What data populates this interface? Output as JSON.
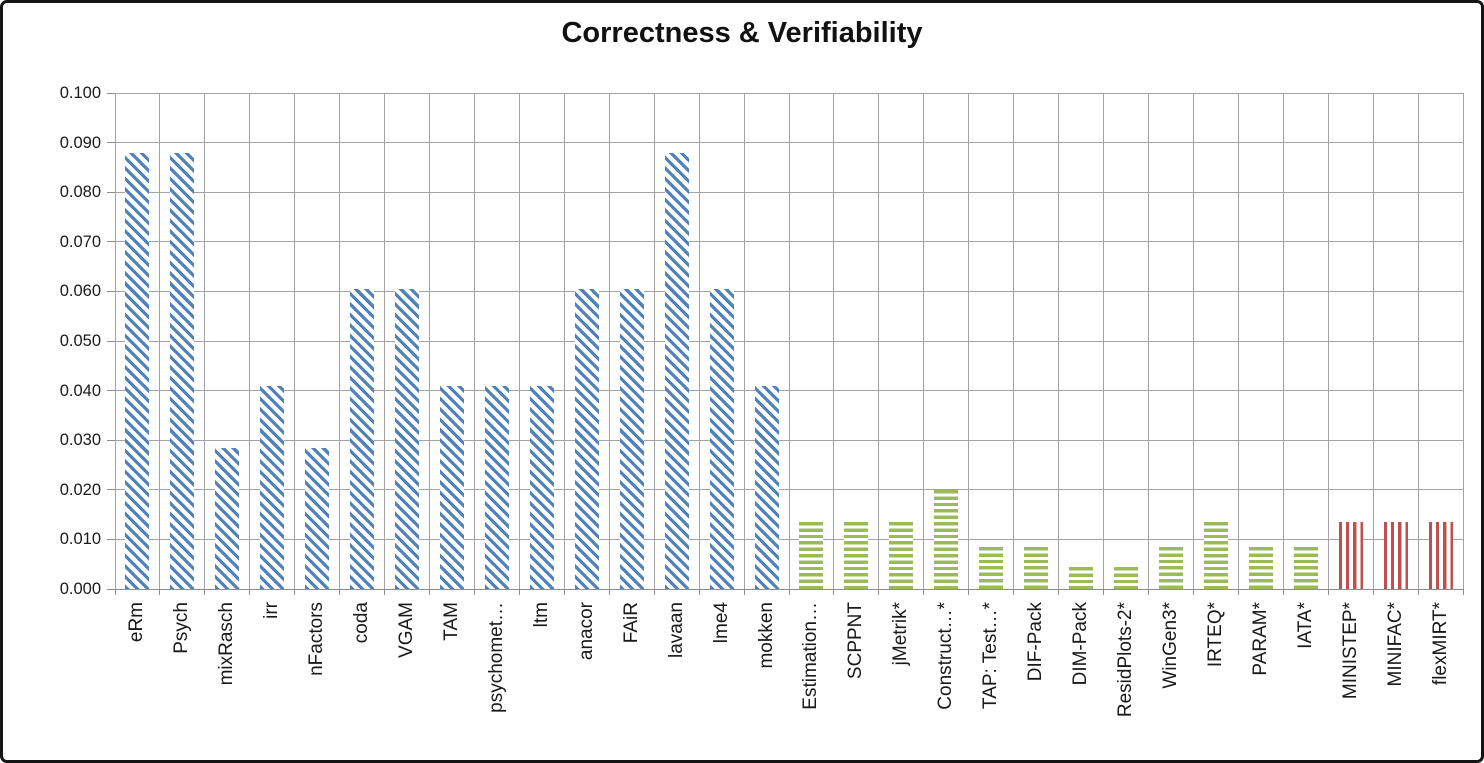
{
  "title": "Correctness & Verifiability",
  "chart_data": {
    "type": "bar",
    "title": "Correctness & Verifiability",
    "xlabel": "",
    "ylabel": "",
    "ylim": [
      0,
      0.1
    ],
    "ytick_step": 0.01,
    "ytick_labels": [
      "0.000",
      "0.010",
      "0.020",
      "0.030",
      "0.040",
      "0.050",
      "0.060",
      "0.070",
      "0.080",
      "0.090",
      "0.100"
    ],
    "grid": "both",
    "legend": "none",
    "groups": [
      {
        "name": "blue-series",
        "color": "#4f81bd",
        "hatch": "diagonal-down"
      },
      {
        "name": "green-series",
        "color": "#9bbb59",
        "hatch": "horizontal"
      },
      {
        "name": "red-series",
        "color": "#c0504d",
        "hatch": "vertical"
      }
    ],
    "categories": [
      {
        "label": "eRm",
        "value": 0.088,
        "group": 0
      },
      {
        "label": "Psych",
        "value": 0.088,
        "group": 0
      },
      {
        "label": "mixRasch",
        "value": 0.0285,
        "group": 0
      },
      {
        "label": "irr",
        "value": 0.041,
        "group": 0
      },
      {
        "label": "nFactors",
        "value": 0.0285,
        "group": 0
      },
      {
        "label": "coda",
        "value": 0.0605,
        "group": 0
      },
      {
        "label": "VGAM",
        "value": 0.0605,
        "group": 0
      },
      {
        "label": "TAM",
        "value": 0.041,
        "group": 0
      },
      {
        "label": "psychomet…",
        "value": 0.041,
        "group": 0
      },
      {
        "label": "ltm",
        "value": 0.041,
        "group": 0
      },
      {
        "label": "anacor",
        "value": 0.0605,
        "group": 0
      },
      {
        "label": "FAiR",
        "value": 0.0605,
        "group": 0
      },
      {
        "label": "lavaan",
        "value": 0.088,
        "group": 0
      },
      {
        "label": "lme4",
        "value": 0.0605,
        "group": 0
      },
      {
        "label": "mokken",
        "value": 0.041,
        "group": 0
      },
      {
        "label": "Estimation…",
        "value": 0.0135,
        "group": 1
      },
      {
        "label": "SCPPNT",
        "value": 0.0135,
        "group": 1
      },
      {
        "label": "jMetrik*",
        "value": 0.0135,
        "group": 1
      },
      {
        "label": "Construct…*",
        "value": 0.02,
        "group": 1
      },
      {
        "label": "TAP: Test…*",
        "value": 0.0085,
        "group": 1
      },
      {
        "label": "DIF-Pack",
        "value": 0.0085,
        "group": 1
      },
      {
        "label": "DIM-Pack",
        "value": 0.0045,
        "group": 1
      },
      {
        "label": "ResidPlots-2*",
        "value": 0.0045,
        "group": 1
      },
      {
        "label": "WinGen3*",
        "value": 0.0085,
        "group": 1
      },
      {
        "label": "IRTEQ*",
        "value": 0.0135,
        "group": 1
      },
      {
        "label": "PARAM*",
        "value": 0.0085,
        "group": 1
      },
      {
        "label": "IATA*",
        "value": 0.0085,
        "group": 1
      },
      {
        "label": "MINISTEP*",
        "value": 0.0135,
        "group": 2
      },
      {
        "label": "MINIFAC*",
        "value": 0.0135,
        "group": 2
      },
      {
        "label": "flexMIRT*",
        "value": 0.0135,
        "group": 2
      }
    ]
  }
}
